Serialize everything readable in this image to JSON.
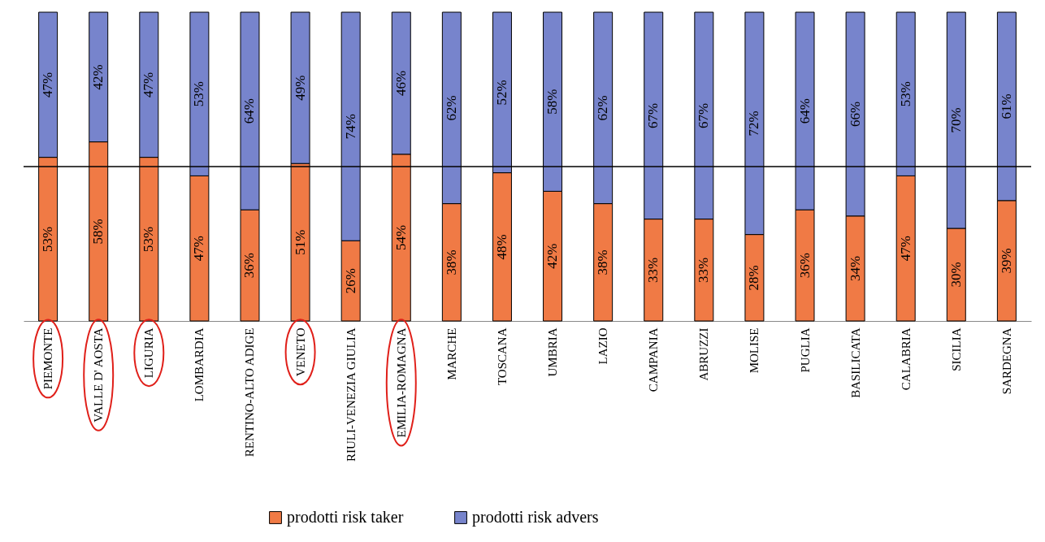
{
  "chart_data": {
    "type": "bar",
    "stacked": true,
    "categories": [
      "PIEMONTE",
      "VALLE D' AOSTA",
      "LIGURIA",
      "LOMBARDIA",
      "RENTINO-ALTO ADIGE",
      "VENETO",
      "RIULI-VENEZIA GIULIA",
      "EMILIA-ROMAGNA",
      "MARCHE",
      "TOSCANA",
      "UMBRIA",
      "LAZIO",
      "CAMPANIA",
      "ABRUZZI",
      "MOLISE",
      "PUGLIA",
      "BASILICATA",
      "CALABRIA",
      "SICILIA",
      "SARDEGNA"
    ],
    "series": [
      {
        "name": "prodotti risk taker",
        "color": "#f07a45",
        "values": [
          53,
          58,
          53,
          47,
          36,
          51,
          26,
          54,
          38,
          48,
          42,
          38,
          33,
          33,
          28,
          36,
          34,
          47,
          30,
          39
        ],
        "value_labels": [
          "53%",
          "58%",
          "53%",
          "47%",
          "36%",
          "51%",
          "26%",
          "54%",
          "38%",
          "48%",
          "42%",
          "38%",
          "33%",
          "33%",
          "28%",
          "36%",
          "34%",
          "47%",
          "30%",
          "39%"
        ]
      },
      {
        "name": "prodotti risk advers",
        "color": "#7784cc",
        "values": [
          47,
          42,
          47,
          53,
          64,
          49,
          74,
          46,
          62,
          52,
          58,
          62,
          67,
          67,
          72,
          64,
          66,
          53,
          70,
          61
        ],
        "value_labels": [
          "47%",
          "42%",
          "47%",
          "53%",
          "64%",
          "49%",
          "74%",
          "46%",
          "62%",
          "52%",
          "58%",
          "62%",
          "67%",
          "67%",
          "72%",
          "64%",
          "66%",
          "53%",
          "70%",
          "61%"
        ]
      }
    ],
    "ref_lines": [
      {
        "axis": "y",
        "value": 50
      }
    ],
    "legend": "bottom"
  }
}
